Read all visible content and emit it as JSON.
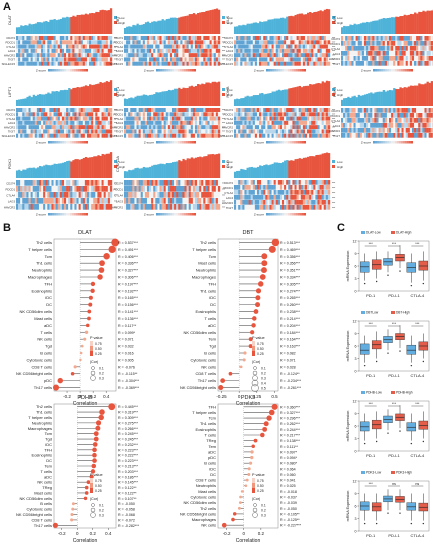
{
  "panels": {
    "A": "A",
    "B": "B",
    "C": "C"
  },
  "heatmaps": {
    "legend": [
      "Low",
      "High"
    ],
    "scale_label": "Z-score",
    "items": [
      {
        "gene": "DLAT",
        "rows": [
          "CD274",
          "PDCD1",
          "CTLA4",
          "LAG3",
          "HAVCR2",
          "TIGIT",
          "SIGLEC15"
        ]
      },
      {
        "gene": "DBT",
        "rows": [
          "CD274",
          "PDCD1",
          "CTLA4",
          "LAG3",
          "HAVCR2",
          "TIGIT",
          "SIGLEC15"
        ]
      },
      {
        "gene": "GLS",
        "rows": [
          "CD274",
          "PDCD1",
          "CTLA4",
          "LAG3",
          "HAVCR2",
          "TIGIT",
          "SIGLEC15"
        ]
      },
      {
        "gene": "LIAS",
        "rows": [
          "CD274",
          "PDCD1",
          "CTLA4",
          "LAG3",
          "HAVCR2",
          "TIGIT"
        ]
      },
      {
        "gene": "LIPT1",
        "rows": [
          "CD274",
          "PDCD1",
          "CTLA4",
          "LAG3",
          "HAVCR2",
          "TIGIT",
          "SIGLEC15"
        ]
      },
      {
        "gene": "MTF1",
        "rows": [
          "CD274",
          "PDCD1",
          "CTLA4",
          "LAG3",
          "HAVCR2",
          "TIGIT",
          "SIGLEC15"
        ]
      },
      {
        "gene": "PDHB",
        "rows": [
          "CD274",
          "PDCD1",
          "CTLA4",
          "LAG3",
          "HAVCR2",
          "TIGIT",
          "SIGLEC15"
        ]
      },
      {
        "gene": "PDK3",
        "rows": [
          "CD274",
          "PDCD1",
          "CTLA4",
          "LAG3",
          "HAVCR2",
          "TIGIT"
        ]
      },
      {
        "gene": "PDK1",
        "rows": [
          "CD274",
          "PDCD1",
          "CTLA4",
          "LAG3",
          "HAVCR2"
        ]
      },
      {
        "gene": "CDKN2A",
        "rows": [
          "CD274",
          "PDCD1",
          "CTLA4",
          "LAG3",
          "HAVCR2"
        ]
      },
      {
        "gene": "DLD",
        "rows": [
          "CD274",
          "PDCD1",
          "CTLA4",
          "LAG3",
          "HAVCR2",
          "TIGIT"
        ]
      }
    ]
  },
  "chart_data": [
    {
      "type": "scatter",
      "title": "DLAT",
      "xlabel": "Correlation",
      "xlim": [
        -0.4,
        0.55
      ],
      "xticks": [
        -0.2,
        0.0,
        0.2,
        0.4
      ],
      "legend_title": "P value",
      "legend_values": [
        "0.75",
        "0.50",
        "0.25"
      ],
      "size_title": "|Cor|",
      "size_values": [
        "0.1",
        "0.2",
        "0.3"
      ],
      "categories": [
        "Th2 cells",
        "T helper cells",
        "Tcm",
        "Th1 cells",
        "Neutrophils",
        "Macrophages",
        "TFH",
        "Eosinophils",
        "iDC",
        "DC",
        "NK CD56dim cells",
        "Mast cells",
        "aDC",
        "T cells",
        "NK cells",
        "Tgd",
        "B cells",
        "Cytotoxic cells",
        "CD8 T cells",
        "NK CD56bright cells",
        "pDC",
        "Th17 cells"
      ],
      "values": [
        0.537,
        0.491,
        0.406,
        0.336,
        0.327,
        0.306,
        0.197,
        0.192,
        0.165,
        0.156,
        0.141,
        0.136,
        0.117,
        0.099,
        0.071,
        0.032,
        0.016,
        0.005,
        -0.076,
        -0.115,
        -0.304,
        -0.369
      ],
      "labels": [
        "R = 0.537***",
        "R = 0.491***",
        "R = 0.406***",
        "R = 0.336***",
        "R = 0.327***",
        "R = 0.306***",
        "R = 0.197***",
        "R = 0.192***",
        "R = 0.165***",
        "R = 0.156***",
        "R = 0.141***",
        "R = 0.136***",
        "R = 0.117**",
        "R = 0.099*",
        "R = 0.071",
        "R = 0.032",
        "R = 0.016",
        "R = 0.005",
        "R = -0.076",
        "R = -0.115**",
        "R = -0.304***",
        "R = -0.369***"
      ]
    },
    {
      "type": "scatter",
      "title": "DBT",
      "xlabel": "Correlation",
      "xlim": [
        -0.3,
        0.55
      ],
      "xticks": [
        -0.25,
        0.0,
        0.25,
        0.5
      ],
      "legend_title": "P value",
      "legend_values": [
        "0.75",
        "0.50",
        "0.25"
      ],
      "size_title": "|Cor|",
      "size_values": [
        "0.1",
        "0.2",
        "0.3",
        "0.4",
        "0.5"
      ],
      "categories": [
        "Th2 cells",
        "T helper cells",
        "Tcm",
        "Mast cells",
        "Neutrophils",
        "Macrophages",
        "TFH",
        "Th1 cells",
        "iDC",
        "DC",
        "Eosinophils",
        "T cells",
        "aDC",
        "NK CD56dim cells",
        "Tem",
        "Tgd",
        "B cells",
        "Cytotoxic cells",
        "NK cells",
        "CD8 T cells",
        "Th17 cells",
        "NK CD56bright cells"
      ],
      "values": [
        0.513,
        0.469,
        0.356,
        0.356,
        0.351,
        0.334,
        0.305,
        0.274,
        0.265,
        0.26,
        0.238,
        0.214,
        0.204,
        0.184,
        0.164,
        0.163,
        0.082,
        0.071,
        0.028,
        -0.124,
        -0.234,
        -0.261
      ],
      "labels": [
        "R = 0.513***",
        "R = 0.469***",
        "R = 0.356***",
        "R = 0.356***",
        "R = 0.351***",
        "R = 0.334***",
        "R = 0.305***",
        "R = 0.274***",
        "R = 0.265***",
        "R = 0.260***",
        "R = 0.238***",
        "R = 0.214***",
        "R = 0.204***",
        "R = 0.184***",
        "R = 0.164***",
        "R = 0.163***",
        "R = 0.082",
        "R = 0.071",
        "R = 0.028",
        "R = -0.124**",
        "R = -0.234***",
        "R = -0.261***"
      ]
    },
    {
      "type": "scatter",
      "title": "PDHB",
      "xlabel": "Correlation",
      "xlim": [
        -0.3,
        0.5
      ],
      "xticks": [
        -0.2,
        0.0,
        0.2,
        0.4
      ],
      "legend_title": "P value",
      "legend_values": [
        "0.75",
        "0.50",
        "0.25"
      ],
      "size_title": "|Cor|",
      "size_values": [
        "0.1",
        "0.2",
        "0.3"
      ],
      "categories": [
        "Th2 cells",
        "Th1 cells",
        "T helper cells",
        "Neutrophils",
        "Macrophages",
        "Tcm",
        "Tgd",
        "iDC",
        "TFH",
        "Eosinophils",
        "DC",
        "Tem",
        "T cells",
        "aDC",
        "NK cells",
        "TReg",
        "Mast cells",
        "NK CD56dim cells",
        "B cells",
        "Cytotoxic cells",
        "NK CD56bright cells",
        "CD8 T cells",
        "Th17 cells"
      ],
      "values": [
        0.445,
        0.319,
        0.309,
        0.275,
        0.266,
        0.245,
        0.245,
        0.232,
        0.223,
        0.222,
        0.223,
        0.213,
        0.203,
        0.186,
        0.145,
        0.122,
        0.122,
        0.107,
        -0.05,
        -0.058,
        -0.068,
        -0.072,
        -0.282
      ],
      "labels": [
        "R = 0.445***",
        "R = 0.319***",
        "R = 0.309***",
        "R = 0.275***",
        "R = 0.266***",
        "R = 0.245***",
        "R = 0.245***",
        "R = 0.232***",
        "R = 0.223***",
        "R = 0.222***",
        "R = 0.223***",
        "R = 0.213***",
        "R = 0.203***",
        "R = 0.186***",
        "R = 0.145***",
        "R = 0.122**",
        "R = 0.122**",
        "R = 0.107**",
        "R = -0.050",
        "R = -0.058",
        "R = -0.068",
        "R = -0.072",
        "R = -0.282***"
      ]
    },
    {
      "type": "scatter",
      "title": "PDK3",
      "xlabel": "Correlation",
      "xlim": [
        -0.3,
        0.4
      ],
      "xticks": [
        -0.2,
        0.0,
        0.2
      ],
      "legend_title": "P value",
      "legend_values": [
        "0.75",
        "0.50",
        "0.25"
      ],
      "size_title": "|Cor|",
      "size_values": [
        "0.1",
        "0.2",
        "0.3"
      ],
      "categories": [
        "TFH",
        "T helper cells",
        "Tcm",
        "Th1 cells",
        "Eosinophils",
        "T cells",
        "TReg",
        "Tem",
        "aDC",
        "pDC",
        "B cells",
        "iDC",
        "DC",
        "CD8 T cells",
        "Neutrophils",
        "Mast cells",
        "Cytotoxic cells",
        "NK CD56dim cells",
        "Th2 cells",
        "NK CD56bright cells",
        "Macrophages",
        "NK cells"
      ],
      "values": [
        0.36,
        0.327,
        0.296,
        0.262,
        0.244,
        0.217,
        0.138,
        0.111,
        0.097,
        0.094,
        0.08,
        0.064,
        0.06,
        0.041,
        0.025,
        -0.018,
        -0.037,
        -0.039,
        -0.05,
        -0.105,
        -0.125,
        -0.227
      ],
      "labels": [
        "R = 0.360***",
        "R = 0.327***",
        "R = 0.296***",
        "R = 0.262***",
        "R = 0.244***",
        "R = 0.217***",
        "R = 0.138***",
        "R = 0.111**",
        "R = 0.097*",
        "R = 0.094*",
        "R = 0.080*",
        "R = 0.064",
        "R = 0.060",
        "R = 0.041",
        "R = 0.025",
        "R = -0.018",
        "R = -0.037",
        "R = -0.039",
        "R = -0.050",
        "R = -0.105**",
        "R = -0.125**",
        "R = -0.227***"
      ]
    },
    {
      "type": "box",
      "ylabel": "mRNA Expression",
      "categories": [
        "PD-1",
        "PD-L1",
        "CTLA-4"
      ],
      "series": [
        {
          "name": "DLAT-Low"
        },
        {
          "name": "DLAT-High"
        }
      ],
      "ylim": [
        0,
        12
      ],
      "yticks": [
        0,
        3,
        6,
        9,
        12
      ],
      "low": [
        [
          2.5,
          4.5,
          5.8,
          7.0,
          9.0
        ],
        [
          4.5,
          6.2,
          7.0,
          7.8,
          9.5
        ],
        [
          2.0,
          4.5,
          5.6,
          6.8,
          9.0
        ]
      ],
      "high": [
        [
          3.0,
          5.2,
          6.3,
          7.5,
          9.5
        ],
        [
          5.5,
          7.2,
          8.0,
          8.8,
          11.0
        ],
        [
          2.5,
          5.0,
          6.0,
          7.2,
          9.5
        ]
      ],
      "sig": [
        "***",
        "***",
        "***"
      ]
    },
    {
      "type": "box",
      "ylabel": "mRNA Expression",
      "categories": [
        "PD-1",
        "PD-L1",
        "CTLA-4"
      ],
      "series": [
        {
          "name": "DBTLow"
        },
        {
          "name": "DBT-High"
        }
      ],
      "ylim": [
        0,
        12
      ],
      "yticks": [
        0,
        3,
        6,
        9,
        12
      ],
      "low": [
        [
          2.0,
          4.0,
          5.0,
          6.5,
          8.5
        ],
        [
          5.0,
          6.8,
          7.5,
          8.3,
          10.0
        ],
        [
          2.0,
          4.0,
          5.0,
          6.2,
          8.5
        ]
      ],
      "high": [
        [
          3.0,
          5.3,
          6.3,
          7.3,
          9.5
        ],
        [
          5.5,
          7.5,
          8.3,
          9.0,
          11.0
        ],
        [
          3.0,
          5.0,
          6.0,
          7.0,
          9.0
        ]
      ],
      "sig": [
        "***",
        "***",
        "***"
      ]
    },
    {
      "type": "box",
      "ylabel": "mRNA Expression",
      "categories": [
        "PD-1",
        "PD-L1",
        "CTLA-4"
      ],
      "series": [
        {
          "name": "PDHB-Low"
        },
        {
          "name": "PDHB-High"
        }
      ],
      "ylim": [
        0,
        12
      ],
      "yticks": [
        0,
        3,
        6,
        9,
        12
      ],
      "low": [
        [
          2.5,
          4.8,
          5.8,
          7.0,
          9.0
        ],
        [
          5.0,
          6.8,
          7.6,
          8.4,
          10.0
        ],
        [
          2.5,
          4.8,
          5.7,
          6.8,
          9.0
        ]
      ],
      "high": [
        [
          3.0,
          5.3,
          6.3,
          7.4,
          9.5
        ],
        [
          5.5,
          7.3,
          8.1,
          8.9,
          11.0
        ],
        [
          3.0,
          5.2,
          6.1,
          7.2,
          9.5
        ]
      ],
      "sig": [
        "***",
        "***",
        "***"
      ]
    },
    {
      "type": "box",
      "ylabel": "mRNA Expression",
      "categories": [
        "PD-1",
        "PD-L1",
        "CTLA-4"
      ],
      "series": [
        {
          "name": "PDK3-Low"
        },
        {
          "name": "PDK3-High"
        }
      ],
      "ylim": [
        0,
        12
      ],
      "yticks": [
        0,
        3,
        6,
        9,
        12
      ],
      "low": [
        [
          2.5,
          5.0,
          6.0,
          7.0,
          9.0
        ],
        [
          5.0,
          7.0,
          7.7,
          8.4,
          10.0
        ],
        [
          2.5,
          5.0,
          5.8,
          6.8,
          9.0
        ]
      ],
      "high": [
        [
          2.5,
          4.8,
          5.8,
          6.8,
          9.0
        ],
        [
          5.0,
          6.9,
          7.6,
          8.3,
          10.0
        ],
        [
          2.5,
          4.8,
          5.7,
          6.7,
          9.0
        ]
      ],
      "sig": [
        "***",
        "ns",
        "ns"
      ]
    }
  ],
  "colors": {
    "low": "#4fb3d9",
    "high": "#e8553e",
    "heat_low": "#3d8fc6",
    "heat_high": "#e8553e",
    "dot": "#e8553e",
    "dot_light": "#f2a98f",
    "box_low": "#63aee0",
    "box_high": "#e35d4a"
  }
}
